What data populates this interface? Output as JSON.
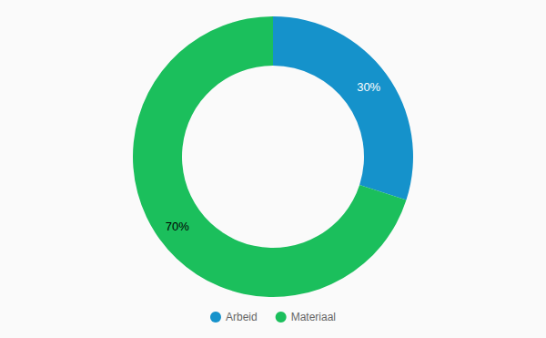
{
  "chart_data": {
    "type": "pie",
    "categories": [
      "Arbeid",
      "Materiaal"
    ],
    "values": [
      30,
      70
    ],
    "value_labels": [
      "30%",
      "70%"
    ],
    "colors": [
      "#1592cb",
      "#1bbf5c"
    ],
    "data_labels": true,
    "legend": "bottom"
  }
}
